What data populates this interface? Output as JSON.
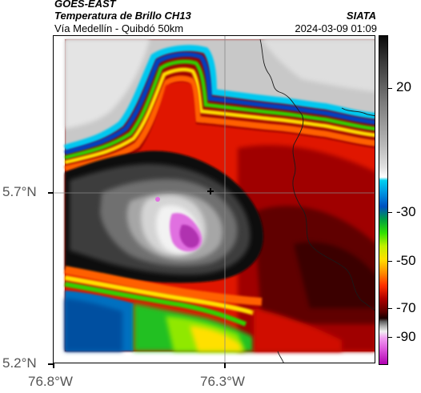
{
  "header": {
    "title_line1": "GOES-EAST",
    "title_line2": "Temperatura de Brillo CH13",
    "subtitle": "Vía Medellín - Quibdó 50km",
    "organization": "SIATA",
    "datetime": "2024-03-09 01:09"
  },
  "axes": {
    "y_ticks": [
      "5.7°N",
      "5.2°N"
    ],
    "x_ticks": [
      "76.8°W",
      "76.3°W"
    ]
  },
  "colorbar": {
    "labels": [
      "20",
      "-30",
      "-50",
      "-70",
      "-90"
    ],
    "colors": {
      "warm_white": "#ffffff",
      "cold_black": "#0a0a0a",
      "cyan": "#00d0f0",
      "blue": "#0050c0",
      "green": "#30e000",
      "yellow": "#ffe000",
      "red": "#ff3000",
      "dark_red": "#5a0000",
      "magenta": "#e060e0"
    }
  }
}
